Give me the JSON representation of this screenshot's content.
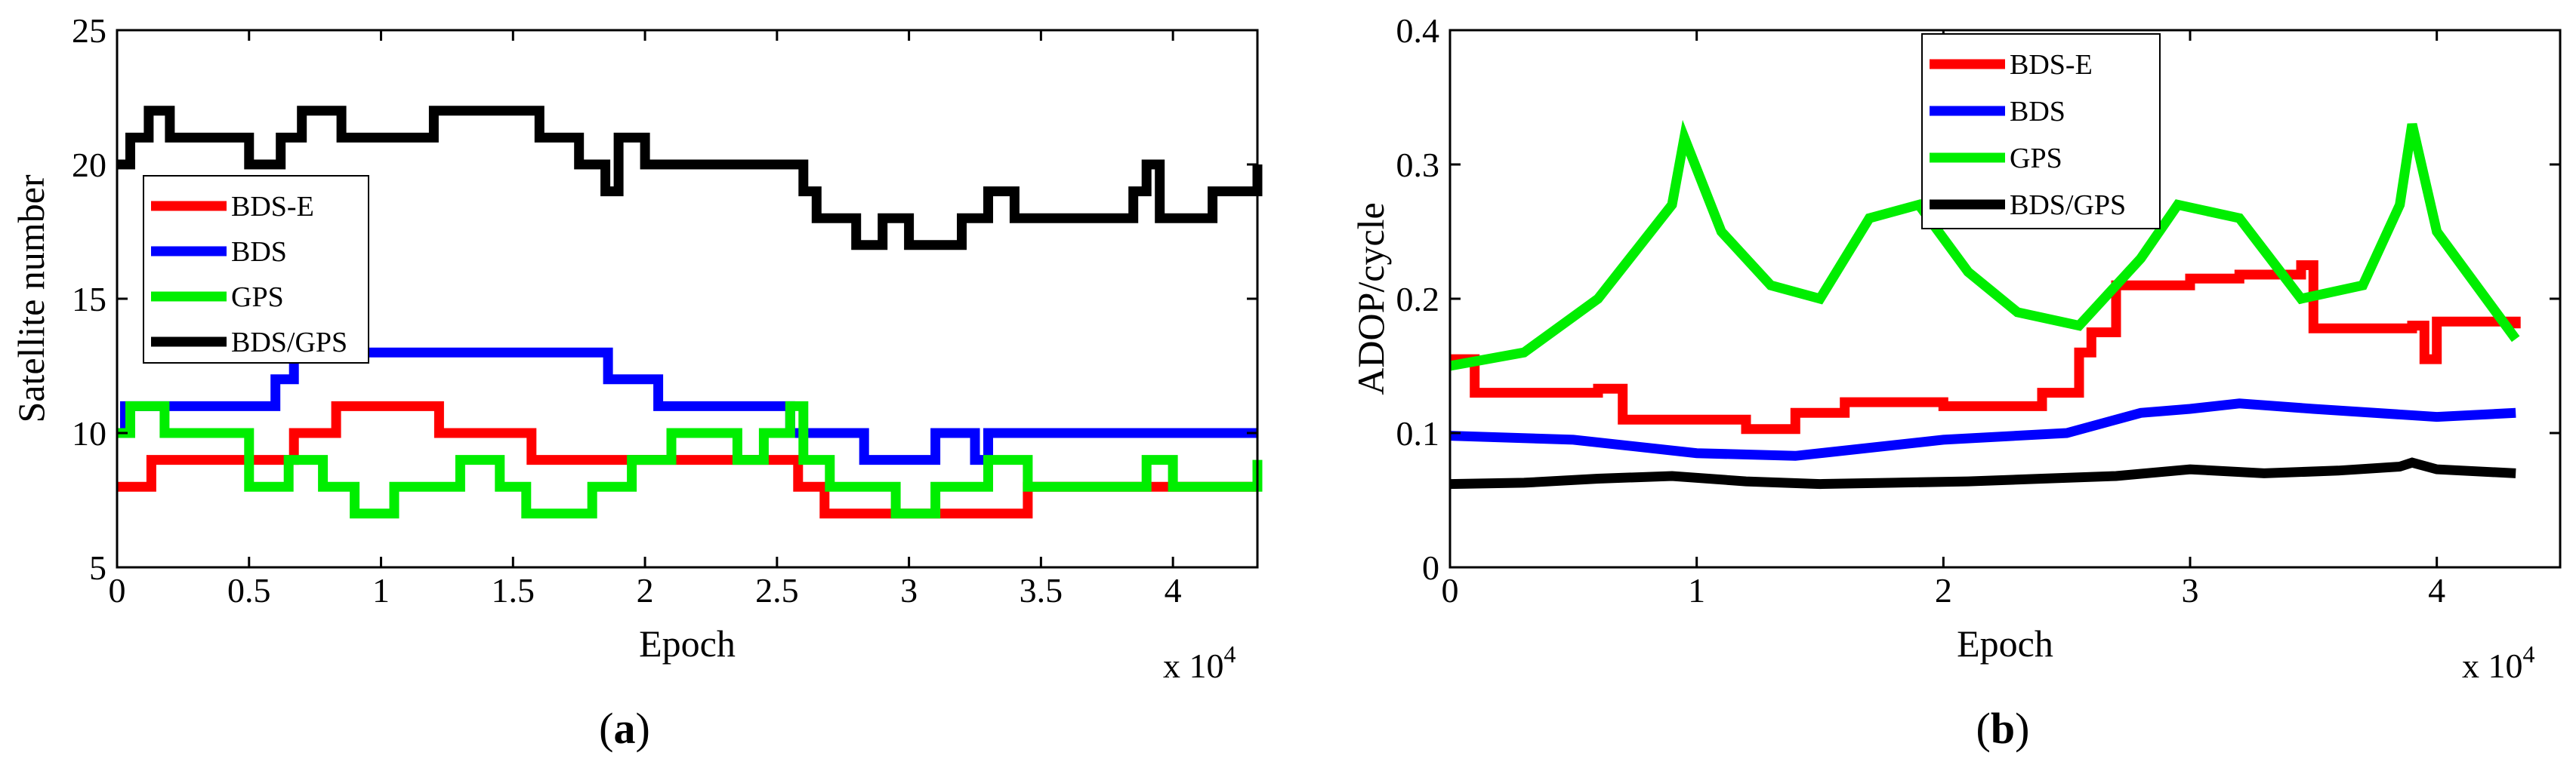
{
  "chart_data": [
    {
      "type": "line",
      "panel": "a",
      "caption_prefix": "(",
      "caption_letter": "a",
      "caption_suffix": ")",
      "xlabel": "Epoch",
      "ylabel": "Satellite number",
      "x_multiplier": "x 10",
      "x_multiplier_exp": "4",
      "xlim": [
        0,
        4.32
      ],
      "ylim": [
        5,
        25
      ],
      "xticks": [
        0,
        0.5,
        1,
        1.5,
        2,
        2.5,
        3,
        3.5,
        4
      ],
      "xtick_labels": [
        "0",
        "0.5",
        "1",
        "1.5",
        "2",
        "2.5",
        "3",
        "3.5",
        "4"
      ],
      "yticks": [
        5,
        10,
        15,
        20,
        25
      ],
      "ytick_labels": [
        "5",
        "10",
        "15",
        "20",
        "25"
      ],
      "legend_position": "upper-left",
      "series": [
        {
          "name": "BDS-E",
          "color": "#ff0000",
          "step": true,
          "x": [
            0,
            0.13,
            0.67,
            0.83,
            1.22,
            1.57,
            2.0,
            2.58,
            2.68,
            3.45,
            3.5,
            4.32
          ],
          "y": [
            8,
            9,
            10,
            11,
            10,
            9,
            9,
            8,
            7,
            8,
            8,
            8
          ]
        },
        {
          "name": "BDS",
          "color": "#0000ff",
          "step": true,
          "x": [
            0,
            0.03,
            0.12,
            0.6,
            0.67,
            1.0,
            1.8,
            1.86,
            2.05,
            2.55,
            2.68,
            2.83,
            3.1,
            3.25,
            3.3,
            4.32
          ],
          "y": [
            10,
            11,
            11,
            12,
            13,
            13,
            13,
            12,
            11,
            10,
            10,
            9,
            10,
            9,
            10,
            10
          ]
        },
        {
          "name": "GPS",
          "color": "#00ee00",
          "step": true,
          "x": [
            0,
            0.05,
            0.18,
            0.3,
            0.5,
            0.65,
            0.78,
            0.9,
            1.05,
            1.2,
            1.3,
            1.45,
            1.55,
            1.65,
            1.8,
            1.95,
            2.1,
            2.2,
            2.35,
            2.45,
            2.55,
            2.6,
            2.7,
            2.8,
            2.95,
            3.1,
            3.2,
            3.3,
            3.45,
            3.6,
            3.8,
            3.9,
            4.0,
            4.15,
            4.32
          ],
          "y": [
            10,
            11,
            10,
            10,
            8,
            9,
            8,
            7,
            8,
            8,
            9,
            8,
            7,
            7,
            8,
            9,
            10,
            10,
            9,
            10,
            11,
            9,
            8,
            8,
            7,
            8,
            8,
            9,
            8,
            8,
            8,
            9,
            8,
            8,
            9
          ]
        },
        {
          "name": "BDS/GPS",
          "color": "#000000",
          "step": true,
          "x": [
            0,
            0.05,
            0.12,
            0.2,
            0.5,
            0.62,
            0.7,
            0.85,
            1.0,
            1.2,
            1.25,
            1.6,
            1.75,
            1.85,
            1.9,
            2.0,
            2.1,
            2.25,
            2.4,
            2.55,
            2.6,
            2.65,
            2.8,
            2.9,
            3.0,
            3.2,
            3.3,
            3.4,
            3.6,
            3.85,
            3.9,
            3.95,
            4.15,
            4.32
          ],
          "y": [
            20,
            21,
            22,
            21,
            20,
            21,
            22,
            21,
            21,
            22,
            22,
            21,
            20,
            19,
            21,
            20,
            20,
            20,
            20,
            20,
            19,
            18,
            17,
            18,
            17,
            18,
            19,
            18,
            18,
            19,
            20,
            18,
            19,
            20
          ]
        }
      ]
    },
    {
      "type": "line",
      "panel": "b",
      "caption_prefix": "(",
      "caption_letter": "b",
      "caption_suffix": ")",
      "xlabel": "Epoch",
      "ylabel": "ADOP/cycle",
      "x_multiplier": "x 10",
      "x_multiplier_exp": "4",
      "xlim": [
        0,
        4.5
      ],
      "ylim": [
        0,
        0.4
      ],
      "xticks": [
        0,
        1,
        2,
        3,
        4
      ],
      "xtick_labels": [
        "0",
        "1",
        "2",
        "3",
        "4"
      ],
      "yticks": [
        0,
        0.1,
        0.2,
        0.3,
        0.4
      ],
      "ytick_labels": [
        "0",
        "0.1",
        "0.2",
        "0.3",
        "0.4"
      ],
      "legend_position": "top-center",
      "series": [
        {
          "name": "BDS-E",
          "color": "#ff0000",
          "step": true,
          "x": [
            0,
            0.1,
            0.6,
            0.7,
            1.2,
            1.4,
            1.6,
            2.0,
            2.4,
            2.55,
            2.6,
            2.7,
            3.0,
            3.2,
            3.45,
            3.5,
            3.9,
            3.95,
            4.0,
            4.32
          ],
          "y": [
            0.155,
            0.13,
            0.133,
            0.11,
            0.103,
            0.115,
            0.123,
            0.12,
            0.13,
            0.16,
            0.175,
            0.21,
            0.215,
            0.218,
            0.225,
            0.178,
            0.18,
            0.155,
            0.183,
            0.178
          ]
        },
        {
          "name": "BDS",
          "color": "#0000ff",
          "step": false,
          "x": [
            0,
            0.5,
            1.0,
            1.4,
            2.0,
            2.5,
            2.8,
            3.0,
            3.2,
            3.5,
            4.0,
            4.32
          ],
          "y": [
            0.098,
            0.095,
            0.085,
            0.083,
            0.095,
            0.1,
            0.115,
            0.118,
            0.122,
            0.118,
            0.112,
            0.115
          ]
        },
        {
          "name": "GPS",
          "color": "#00ee00",
          "step": false,
          "x": [
            0,
            0.3,
            0.6,
            0.9,
            0.95,
            1.1,
            1.3,
            1.5,
            1.7,
            1.9,
            2.1,
            2.3,
            2.55,
            2.8,
            2.95,
            3.2,
            3.45,
            3.7,
            3.85,
            3.9,
            4.0,
            4.2,
            4.32
          ],
          "y": [
            0.15,
            0.16,
            0.2,
            0.27,
            0.32,
            0.25,
            0.21,
            0.2,
            0.26,
            0.27,
            0.22,
            0.19,
            0.18,
            0.23,
            0.27,
            0.26,
            0.2,
            0.21,
            0.27,
            0.33,
            0.25,
            0.2,
            0.17
          ]
        },
        {
          "name": "BDS/GPS",
          "color": "#000000",
          "step": false,
          "x": [
            0,
            0.3,
            0.6,
            0.9,
            1.2,
            1.5,
            1.8,
            2.1,
            2.4,
            2.7,
            3.0,
            3.3,
            3.6,
            3.85,
            3.9,
            4.0,
            4.32
          ],
          "y": [
            0.062,
            0.063,
            0.066,
            0.068,
            0.064,
            0.062,
            0.063,
            0.064,
            0.066,
            0.068,
            0.073,
            0.07,
            0.072,
            0.075,
            0.078,
            0.073,
            0.07
          ]
        }
      ]
    }
  ]
}
